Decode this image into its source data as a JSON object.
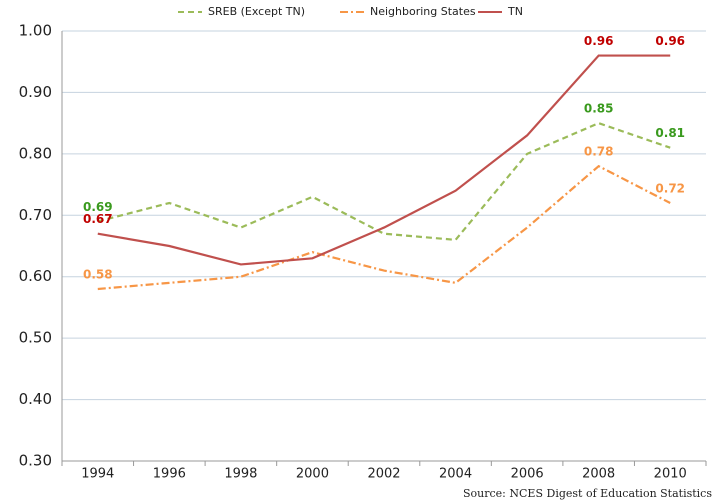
{
  "chart_data": {
    "type": "line",
    "categories": [
      "1994",
      "1996",
      "1998",
      "2000",
      "2002",
      "2004",
      "2006",
      "2008",
      "2010"
    ],
    "series": [
      {
        "name": "SREB (Except TN)",
        "color": "#9bbb59",
        "dash": "6,4",
        "label_color": "#3a9a1e",
        "values": [
          0.69,
          0.72,
          0.68,
          0.73,
          0.67,
          0.66,
          0.8,
          0.85,
          0.81
        ],
        "value_labels": [
          "0.69",
          null,
          null,
          null,
          null,
          null,
          null,
          "0.85",
          "0.81"
        ]
      },
      {
        "name": "Neighboring States",
        "color": "#f79646",
        "dash": "8,3,2,3",
        "label_color": "#f79646",
        "values": [
          0.58,
          0.59,
          0.6,
          0.64,
          0.61,
          0.59,
          0.68,
          0.78,
          0.72
        ],
        "value_labels": [
          "0.58",
          null,
          null,
          null,
          null,
          null,
          null,
          "0.78",
          "0.72"
        ]
      },
      {
        "name": "TN",
        "color": "#c0504d",
        "dash": "none",
        "label_color": "#c00000",
        "values": [
          0.67,
          0.65,
          0.62,
          0.63,
          0.68,
          0.74,
          0.83,
          0.96,
          0.96
        ],
        "value_labels": [
          "0.67",
          null,
          null,
          null,
          null,
          null,
          null,
          "0.96",
          "0.96"
        ]
      }
    ],
    "ylim": [
      0.3,
      1.0
    ],
    "yticks": [
      {
        "value": 0.3,
        "label": "0.30"
      },
      {
        "value": 0.4,
        "label": "0.40"
      },
      {
        "value": 0.5,
        "label": "0.50"
      },
      {
        "value": 0.6,
        "label": "0.60"
      },
      {
        "value": 0.7,
        "label": "0.70"
      },
      {
        "value": 0.8,
        "label": "0.80"
      },
      {
        "value": 0.9,
        "label": "0.90"
      },
      {
        "value": 1.0,
        "label": "1.00"
      }
    ],
    "grid": true,
    "legend": "top",
    "source": "Source: NCES Digest of Education Statistics"
  }
}
